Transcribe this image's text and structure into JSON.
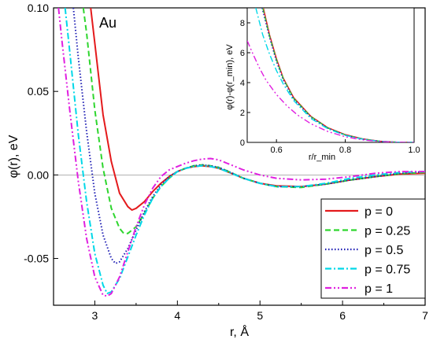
{
  "chart_data": [
    {
      "type": "line",
      "title": "Au",
      "xlabel": "r, Å",
      "ylabel": "φ(r), eV",
      "xlim": [
        2.5,
        7
      ],
      "ylim": [
        -0.078,
        0.1
      ],
      "xticks": [
        "3",
        "4",
        "5",
        "6",
        "7"
      ],
      "yticks": [
        "0.10",
        "0.05",
        "0.00",
        "-0.05"
      ],
      "zero_line": true,
      "legend_position": "bottom-right",
      "series": [
        {
          "name": "p = 0",
          "color": "#e41a1c",
          "dash": "solid",
          "points": [
            [
              2.95,
              0.1
            ],
            [
              3.0,
              0.079
            ],
            [
              3.1,
              0.036
            ],
            [
              3.2,
              0.008
            ],
            [
              3.3,
              -0.011
            ],
            [
              3.4,
              -0.019
            ],
            [
              3.45,
              -0.021
            ],
            [
              3.5,
              -0.02
            ],
            [
              3.6,
              -0.016
            ],
            [
              3.7,
              -0.01
            ],
            [
              3.8,
              -0.005
            ],
            [
              3.9,
              -0.001
            ],
            [
              4.0,
              0.002
            ],
            [
              4.1,
              0.004
            ],
            [
              4.2,
              0.005
            ],
            [
              4.3,
              0.0055
            ],
            [
              4.4,
              0.005
            ],
            [
              4.5,
              0.004
            ],
            [
              4.6,
              0.002
            ],
            [
              4.8,
              -0.002
            ],
            [
              5.0,
              -0.005
            ],
            [
              5.2,
              -0.0065
            ],
            [
              5.5,
              -0.007
            ],
            [
              5.8,
              -0.0055
            ],
            [
              6.1,
              -0.003
            ],
            [
              6.4,
              -0.001
            ],
            [
              6.7,
              0.0005
            ],
            [
              7.0,
              0.001
            ]
          ]
        },
        {
          "name": "p = 0.25",
          "color": "#2ed62e",
          "dash": "dashed",
          "points": [
            [
              2.86,
              0.1
            ],
            [
              2.9,
              0.085
            ],
            [
              3.0,
              0.039
            ],
            [
              3.1,
              0.004
            ],
            [
              3.2,
              -0.02
            ],
            [
              3.3,
              -0.032
            ],
            [
              3.35,
              -0.035
            ],
            [
              3.4,
              -0.035
            ],
            [
              3.5,
              -0.031
            ],
            [
              3.6,
              -0.023
            ],
            [
              3.7,
              -0.014
            ],
            [
              3.8,
              -0.007
            ],
            [
              3.9,
              -0.002
            ],
            [
              4.0,
              0.002
            ],
            [
              4.1,
              0.004
            ],
            [
              4.2,
              0.0055
            ],
            [
              4.3,
              0.006
            ],
            [
              4.4,
              0.0055
            ],
            [
              4.5,
              0.0045
            ],
            [
              4.6,
              0.0025
            ],
            [
              4.8,
              -0.002
            ],
            [
              5.0,
              -0.005
            ],
            [
              5.2,
              -0.007
            ],
            [
              5.5,
              -0.0075
            ],
            [
              5.8,
              -0.0055
            ],
            [
              6.1,
              -0.003
            ],
            [
              6.4,
              -0.001
            ],
            [
              6.7,
              0.0008
            ],
            [
              7.0,
              0.0015
            ]
          ]
        },
        {
          "name": "p = 0.5",
          "color": "#1f1fb4",
          "dash": "dotted",
          "points": [
            [
              2.74,
              0.1
            ],
            [
              2.8,
              0.07
            ],
            [
              2.9,
              0.026
            ],
            [
              3.0,
              -0.011
            ],
            [
              3.1,
              -0.036
            ],
            [
              3.2,
              -0.05
            ],
            [
              3.25,
              -0.053
            ],
            [
              3.3,
              -0.052
            ],
            [
              3.4,
              -0.044
            ],
            [
              3.5,
              -0.033
            ],
            [
              3.6,
              -0.022
            ],
            [
              3.7,
              -0.013
            ],
            [
              3.8,
              -0.006
            ],
            [
              3.9,
              -0.001
            ],
            [
              4.0,
              0.002
            ],
            [
              4.1,
              0.004
            ],
            [
              4.2,
              0.0055
            ],
            [
              4.3,
              0.006
            ],
            [
              4.4,
              0.0055
            ],
            [
              4.5,
              0.0045
            ],
            [
              4.6,
              0.0025
            ],
            [
              4.8,
              -0.002
            ],
            [
              5.0,
              -0.005
            ],
            [
              5.2,
              -0.007
            ],
            [
              5.5,
              -0.007
            ],
            [
              5.8,
              -0.0055
            ],
            [
              6.1,
              -0.003
            ],
            [
              6.4,
              -0.001
            ],
            [
              6.7,
              0.001
            ],
            [
              7.0,
              0.002
            ]
          ]
        },
        {
          "name": "p = 0.75",
          "color": "#00d8e8",
          "dash": "dashdot",
          "points": [
            [
              2.64,
              0.1
            ],
            [
              2.7,
              0.072
            ],
            [
              2.8,
              0.024
            ],
            [
              2.9,
              -0.016
            ],
            [
              3.0,
              -0.047
            ],
            [
              3.1,
              -0.066
            ],
            [
              3.15,
              -0.071
            ],
            [
              3.2,
              -0.07
            ],
            [
              3.3,
              -0.062
            ],
            [
              3.4,
              -0.049
            ],
            [
              3.5,
              -0.036
            ],
            [
              3.6,
              -0.024
            ],
            [
              3.7,
              -0.014
            ],
            [
              3.8,
              -0.007
            ],
            [
              3.9,
              -0.002
            ],
            [
              4.0,
              0.002
            ],
            [
              4.1,
              0.004
            ],
            [
              4.2,
              0.005
            ],
            [
              4.3,
              0.0055
            ],
            [
              4.4,
              0.005
            ],
            [
              4.5,
              0.004
            ],
            [
              4.6,
              0.002
            ],
            [
              4.8,
              -0.002
            ],
            [
              5.0,
              -0.005
            ],
            [
              5.2,
              -0.007
            ],
            [
              5.5,
              -0.007
            ],
            [
              5.8,
              -0.005
            ],
            [
              6.1,
              -0.002
            ],
            [
              6.4,
              0.0
            ],
            [
              6.7,
              0.0015
            ],
            [
              7.0,
              0.002
            ]
          ]
        },
        {
          "name": "p = 1",
          "color": "#e020e0",
          "dash": "dashdotdot",
          "points": [
            [
              2.56,
              0.1
            ],
            [
              2.6,
              0.081
            ],
            [
              2.7,
              0.037
            ],
            [
              2.8,
              -0.004
            ],
            [
              2.9,
              -0.038
            ],
            [
              3.0,
              -0.061
            ],
            [
              3.1,
              -0.072
            ],
            [
              3.15,
              -0.0725
            ],
            [
              3.2,
              -0.071
            ],
            [
              3.3,
              -0.061
            ],
            [
              3.4,
              -0.046
            ],
            [
              3.5,
              -0.031
            ],
            [
              3.6,
              -0.018
            ],
            [
              3.7,
              -0.008
            ],
            [
              3.8,
              -0.001
            ],
            [
              3.9,
              0.003
            ],
            [
              4.0,
              0.005
            ],
            [
              4.1,
              0.007
            ],
            [
              4.2,
              0.0085
            ],
            [
              4.3,
              0.0095
            ],
            [
              4.4,
              0.0098
            ],
            [
              4.5,
              0.009
            ],
            [
              4.6,
              0.007
            ],
            [
              4.8,
              0.003
            ],
            [
              5.0,
              0.0
            ],
            [
              5.2,
              -0.002
            ],
            [
              5.5,
              -0.003
            ],
            [
              5.8,
              -0.0025
            ],
            [
              6.1,
              -0.001
            ],
            [
              6.4,
              0.001
            ],
            [
              6.7,
              0.002
            ],
            [
              7.0,
              0.002
            ]
          ]
        }
      ]
    },
    {
      "type": "line",
      "title": "",
      "xlabel": "r/r_min",
      "ylabel": "φ(r)-φ(r_min), eV",
      "xlim": [
        0.515,
        1.0
      ],
      "ylim": [
        0,
        9
      ],
      "xticks": [
        "0.6",
        "0.8",
        "1.0"
      ],
      "yticks": [
        "0",
        "2",
        "4",
        "6",
        "8"
      ],
      "series": [
        {
          "name": "p = 0",
          "color": "#e41a1c",
          "dash": "solid",
          "points": [
            [
              0.562,
              9.0
            ],
            [
              0.58,
              7.2
            ],
            [
              0.6,
              5.6
            ],
            [
              0.62,
              4.3
            ],
            [
              0.65,
              3.0
            ],
            [
              0.7,
              1.75
            ],
            [
              0.75,
              0.98
            ],
            [
              0.8,
              0.52
            ],
            [
              0.85,
              0.24
            ],
            [
              0.9,
              0.08
            ],
            [
              0.95,
              0.015
            ],
            [
              1.0,
              0.0
            ]
          ]
        },
        {
          "name": "p = 0.25",
          "color": "#2ed62e",
          "dash": "dashed",
          "points": [
            [
              0.56,
              9.0
            ],
            [
              0.58,
              7.1
            ],
            [
              0.6,
              5.5
            ],
            [
              0.62,
              4.25
            ],
            [
              0.65,
              2.95
            ],
            [
              0.7,
              1.72
            ],
            [
              0.75,
              0.96
            ],
            [
              0.8,
              0.5
            ],
            [
              0.85,
              0.23
            ],
            [
              0.9,
              0.08
            ],
            [
              0.95,
              0.015
            ],
            [
              1.0,
              0.0
            ]
          ]
        },
        {
          "name": "p = 0.5",
          "color": "#1f1fb4",
          "dash": "dotted",
          "points": [
            [
              0.558,
              9.0
            ],
            [
              0.58,
              7.0
            ],
            [
              0.6,
              5.4
            ],
            [
              0.62,
              4.15
            ],
            [
              0.65,
              2.9
            ],
            [
              0.7,
              1.68
            ],
            [
              0.75,
              0.94
            ],
            [
              0.8,
              0.49
            ],
            [
              0.85,
              0.22
            ],
            [
              0.9,
              0.075
            ],
            [
              0.95,
              0.014
            ],
            [
              1.0,
              0.0
            ]
          ]
        },
        {
          "name": "p = 0.75",
          "color": "#00d8e8",
          "dash": "dashdot",
          "points": [
            [
              0.54,
              9.0
            ],
            [
              0.56,
              7.2
            ],
            [
              0.58,
              5.9
            ],
            [
              0.6,
              4.8
            ],
            [
              0.62,
              3.9
            ],
            [
              0.65,
              2.8
            ],
            [
              0.7,
              1.6
            ],
            [
              0.75,
              0.9
            ],
            [
              0.8,
              0.47
            ],
            [
              0.85,
              0.21
            ],
            [
              0.9,
              0.07
            ],
            [
              0.95,
              0.013
            ],
            [
              1.0,
              0.0
            ]
          ]
        },
        {
          "name": "p = 1",
          "color": "#e020e0",
          "dash": "dashdotdot",
          "points": [
            [
              0.515,
              6.8
            ],
            [
              0.53,
              6.0
            ],
            [
              0.55,
              5.0
            ],
            [
              0.57,
              4.15
            ],
            [
              0.6,
              3.2
            ],
            [
              0.63,
              2.45
            ],
            [
              0.66,
              1.85
            ],
            [
              0.7,
              1.25
            ],
            [
              0.75,
              0.72
            ],
            [
              0.8,
              0.38
            ],
            [
              0.85,
              0.17
            ],
            [
              0.9,
              0.06
            ],
            [
              0.95,
              0.012
            ],
            [
              1.0,
              0.0
            ]
          ]
        }
      ]
    }
  ]
}
